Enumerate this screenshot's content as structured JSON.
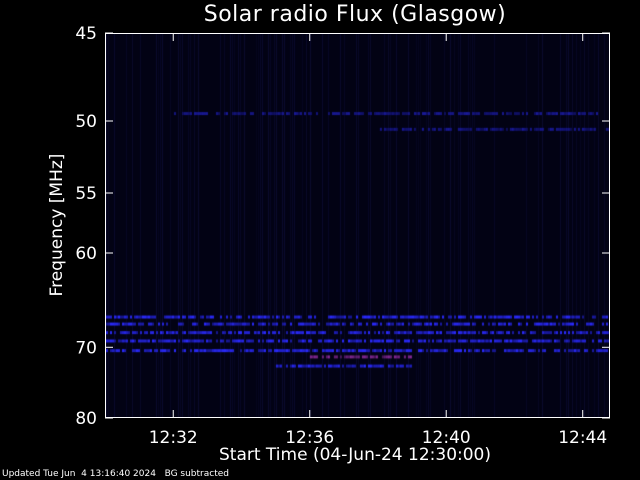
{
  "chart_data": {
    "type": "heatmap",
    "title": "Solar radio Flux (Glasgow)",
    "xlabel": "Start Time (04-Jun-24 12:30:00)",
    "ylabel": "Frequency [MHz]",
    "y_ticks": [
      "45",
      "50",
      "55",
      "60",
      "70",
      "80"
    ],
    "y_tick_values": [
      45,
      50,
      55,
      60,
      70,
      80
    ],
    "x_ticks": [
      "12:32",
      "12:36",
      "12:40",
      "12:44"
    ],
    "x_tick_values_min": [
      2,
      6,
      10,
      14
    ],
    "xlim_min": [
      0,
      14.8
    ],
    "ylim_mhz": [
      45,
      80
    ],
    "y_scale": "reciprocal",
    "background_color": "#020214",
    "colors": {
      "weak": "#1a1a9a",
      "medium": "#2a2aff",
      "strong": "#8a2a9a"
    },
    "bands": [
      {
        "freq_mhz": 49.5,
        "intensity": "weak",
        "start_min": 2.0,
        "end_min": 14.5
      },
      {
        "freq_mhz": 50.5,
        "intensity": "weak",
        "start_min": 8.0,
        "end_min": 14.8
      },
      {
        "freq_mhz": 66.5,
        "intensity": "medium",
        "start_min": 0.0,
        "end_min": 14.8
      },
      {
        "freq_mhz": 67.3,
        "intensity": "medium",
        "start_min": 0.0,
        "end_min": 14.8
      },
      {
        "freq_mhz": 68.3,
        "intensity": "medium",
        "start_min": 0.0,
        "end_min": 14.8
      },
      {
        "freq_mhz": 69.3,
        "intensity": "medium",
        "start_min": 0.0,
        "end_min": 14.8
      },
      {
        "freq_mhz": 70.5,
        "intensity": "medium",
        "start_min": 0.0,
        "end_min": 14.8
      },
      {
        "freq_mhz": 71.3,
        "intensity": "strong",
        "start_min": 6.0,
        "end_min": 9.0
      },
      {
        "freq_mhz": 72.5,
        "intensity": "medium",
        "start_min": 5.0,
        "end_min": 9.0
      }
    ]
  },
  "footer": {
    "updated": "Updated Tue Jun  4 13:16:40 2024",
    "note": "BG subtracted"
  }
}
